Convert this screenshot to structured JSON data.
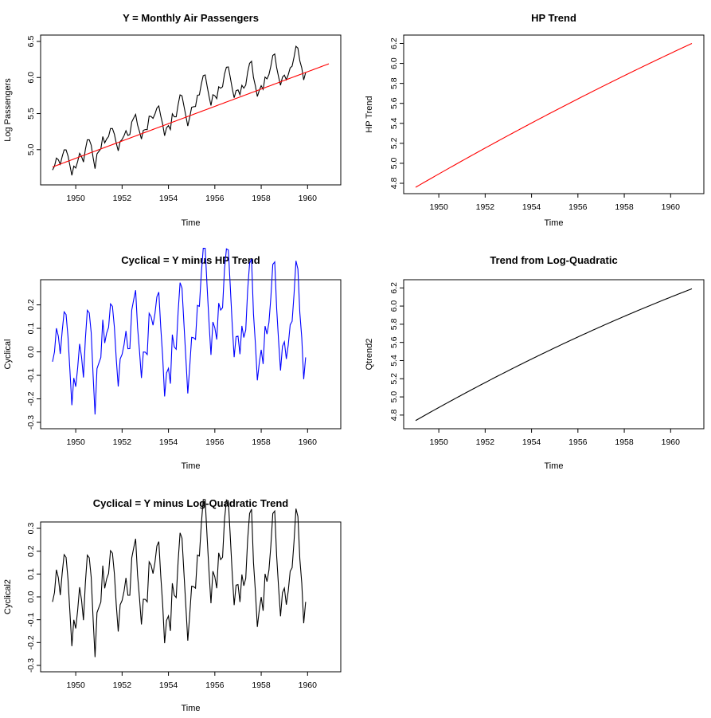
{
  "chart_data": [
    {
      "type": "line",
      "title": "Y = Monthly Air Passengers",
      "xlabel": "Time",
      "ylabel": "Log Passengers",
      "xlim": [
        1949.0,
        1960.917
      ],
      "ylim": [
        4.6,
        6.5
      ],
      "xticks": [
        "1950",
        "1952",
        "1954",
        "1956",
        "1958",
        "1960"
      ],
      "yticks": [
        "5.0",
        "5.5",
        "6.0",
        "6.5"
      ],
      "series": [
        {
          "name": "Log Passengers",
          "color": "#000000",
          "x_start": 1949,
          "step": 0.08333,
          "values": [
            4.718,
            4.771,
            4.883,
            4.86,
            4.796,
            4.905,
            4.997,
            4.997,
            4.913,
            4.779,
            4.644,
            4.771,
            4.745,
            4.836,
            4.949,
            4.905,
            4.828,
            5.004,
            5.136,
            5.136,
            5.063,
            4.89,
            4.736,
            4.942,
            4.977,
            5.011,
            5.182,
            5.094,
            5.147,
            5.182,
            5.293,
            5.293,
            5.215,
            5.088,
            4.984,
            5.112,
            5.142,
            5.193,
            5.263,
            5.198,
            5.209,
            5.384,
            5.438,
            5.489,
            5.342,
            5.252,
            5.147,
            5.268,
            5.278,
            5.278,
            5.464,
            5.46,
            5.434,
            5.493,
            5.576,
            5.606,
            5.468,
            5.352,
            5.193,
            5.303,
            5.333,
            5.278,
            5.497,
            5.455,
            5.455,
            5.624,
            5.759,
            5.746,
            5.606,
            5.468,
            5.328,
            5.451,
            5.587,
            5.595,
            5.598,
            5.753,
            5.759,
            5.908,
            6.026,
            6.036,
            5.883,
            5.739,
            5.612,
            5.762,
            5.747,
            5.707,
            5.872,
            5.852,
            5.872,
            6.046,
            6.142,
            6.147,
            6.001,
            5.849,
            5.72,
            5.817,
            5.829,
            5.762,
            5.892,
            5.852,
            5.894,
            6.075,
            6.197,
            6.225,
            6.001,
            5.883,
            5.737,
            5.82,
            5.886,
            5.835,
            6.006,
            5.981,
            6.04,
            6.157,
            6.306,
            6.326,
            6.138,
            6.009,
            5.892,
            6.004,
            6.033,
            5.969,
            6.038,
            6.133,
            6.157,
            6.282,
            6.433,
            6.407,
            6.23,
            6.133,
            5.966,
            6.068
          ]
        },
        {
          "name": "HP Trend",
          "color": "#ff0000",
          "x_start": 1949,
          "step": 0.08333,
          "from": 4.76,
          "to": 6.19,
          "curvature": 0
        }
      ]
    },
    {
      "type": "line",
      "title": "HP Trend",
      "xlabel": "Time",
      "ylabel": "HP Trend",
      "xlim": [
        1949.0,
        1960.917
      ],
      "ylim": [
        4.76,
        6.22
      ],
      "xticks": [
        "1950",
        "1952",
        "1954",
        "1956",
        "1958",
        "1960"
      ],
      "yticks": [
        "4.8",
        "5.0",
        "5.2",
        "5.4",
        "5.6",
        "5.8",
        "6.0",
        "6.2"
      ],
      "series": [
        {
          "name": "HP Trend",
          "color": "#ff0000",
          "x_start": 1949,
          "step": 0.08333,
          "from": 4.76,
          "to": 6.2,
          "curvature": 0.08
        }
      ]
    },
    {
      "type": "line",
      "title": "Cyclical = Y minus HP Trend",
      "xlabel": "Time",
      "ylabel": "Cyclical",
      "xlim": [
        1949.0,
        1960.917
      ],
      "ylim": [
        -0.3,
        0.28
      ],
      "xticks": [
        "1950",
        "1952",
        "1954",
        "1956",
        "1958",
        "1960"
      ],
      "yticks": [
        "-0.3",
        "-0.2",
        "-0.1",
        "0.0",
        "0.1",
        "0.2"
      ],
      "series": [
        {
          "name": "Cyclical",
          "color": "#0000ff",
          "derive": "diff",
          "a": 0,
          "b": 1
        }
      ]
    },
    {
      "type": "line",
      "title": "Trend from Log-Quadratic",
      "xlabel": "Time",
      "ylabel": "Qtrend2",
      "xlim": [
        1949.0,
        1960.917
      ],
      "ylim": [
        4.72,
        6.22
      ],
      "xticks": [
        "1950",
        "1952",
        "1954",
        "1956",
        "1958",
        "1960"
      ],
      "yticks": [
        "4.8",
        "5.0",
        "5.2",
        "5.4",
        "5.6",
        "5.8",
        "6.0",
        "6.2"
      ],
      "series": [
        {
          "name": "Qtrend2",
          "color": "#000000",
          "x_start": 1949,
          "step": 0.08333,
          "from": 4.74,
          "to": 6.19,
          "curvature": 0.14
        }
      ]
    },
    {
      "type": "line",
      "title": "Cyclical = Y minus Log-Quadratic Trend",
      "xlabel": "Time",
      "ylabel": "Cyclical2",
      "xlim": [
        1949.0,
        1960.917
      ],
      "ylim": [
        -0.3,
        0.3
      ],
      "xticks": [
        "1950",
        "1952",
        "1954",
        "1956",
        "1958",
        "1960"
      ],
      "yticks": [
        "-0.3",
        "-0.2",
        "-0.1",
        "0.0",
        "0.1",
        "0.2",
        "0.3"
      ],
      "series": [
        {
          "name": "Cyclical2",
          "color": "#000000",
          "derive": "diff",
          "a": 0,
          "b": 3
        }
      ]
    }
  ]
}
